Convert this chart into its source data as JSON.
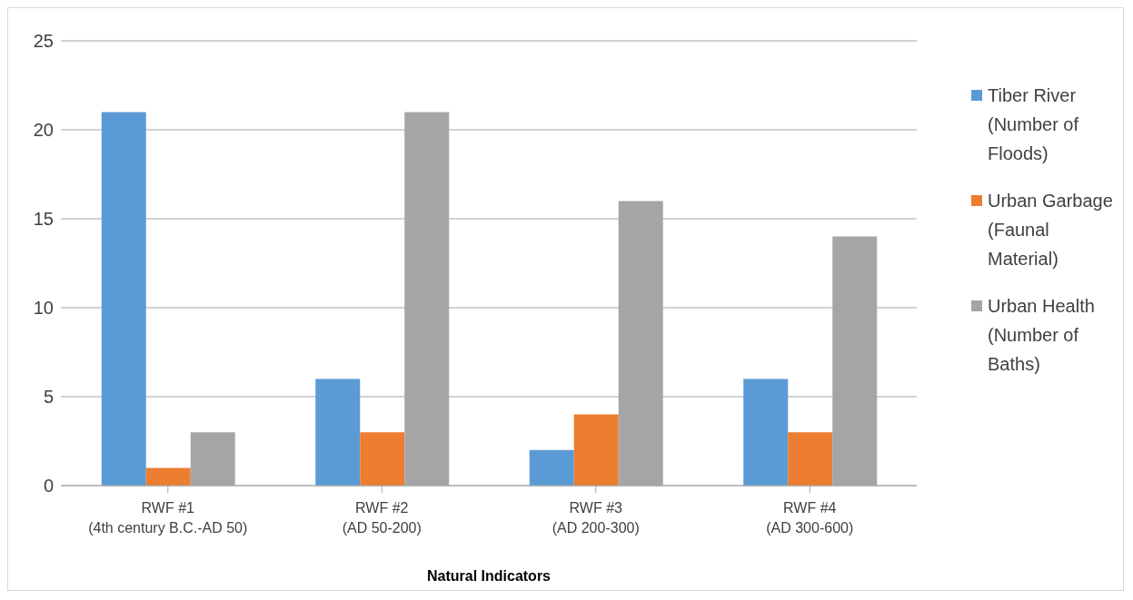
{
  "chart_data": {
    "type": "bar",
    "xlabel": "Natural Indicators",
    "categories": [
      "RWF #1 (4th century B.C.-AD 50)",
      "RWF #2 (AD 50-200)",
      "RWF #3 (AD 200-300)",
      "RWF #4 (AD 300-600)"
    ],
    "series": [
      {
        "name": "Tiber River (Number of Floods)",
        "color": "#5b9bd5",
        "values": [
          21,
          6,
          2,
          6
        ]
      },
      {
        "name": "Urban Garbage (Faunal Material)",
        "color": "#ed7d31",
        "values": [
          1,
          3,
          4,
          3
        ]
      },
      {
        "name": "Urban Health (Number of Baths)",
        "color": "#a5a5a5",
        "values": [
          3,
          21,
          16,
          14
        ]
      }
    ],
    "ylim": [
      0,
      25
    ],
    "yticks": [
      0,
      5,
      10,
      15,
      20,
      25
    ],
    "grid": "y",
    "legend": "right"
  }
}
